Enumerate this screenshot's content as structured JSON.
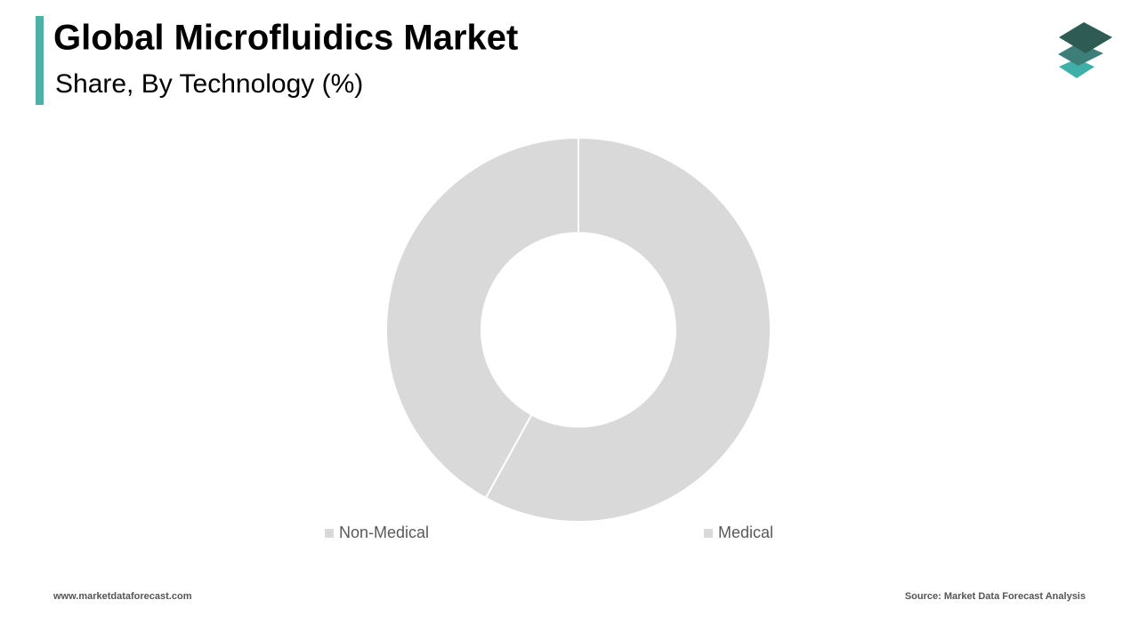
{
  "chart_data": {
    "type": "donut",
    "title": "Global Microfluidics Market",
    "subtitle": "Share, By Technology (%)",
    "categories": [
      "Non-Medical",
      "Medical"
    ],
    "values": [
      42,
      58
    ],
    "colors": [
      "#d9d9d9",
      "#d9d9d9"
    ],
    "legend": "bottom"
  },
  "footer": {
    "website": "www.marketdataforecast.com",
    "source": "Source: Market Data Forecast Analysis"
  }
}
